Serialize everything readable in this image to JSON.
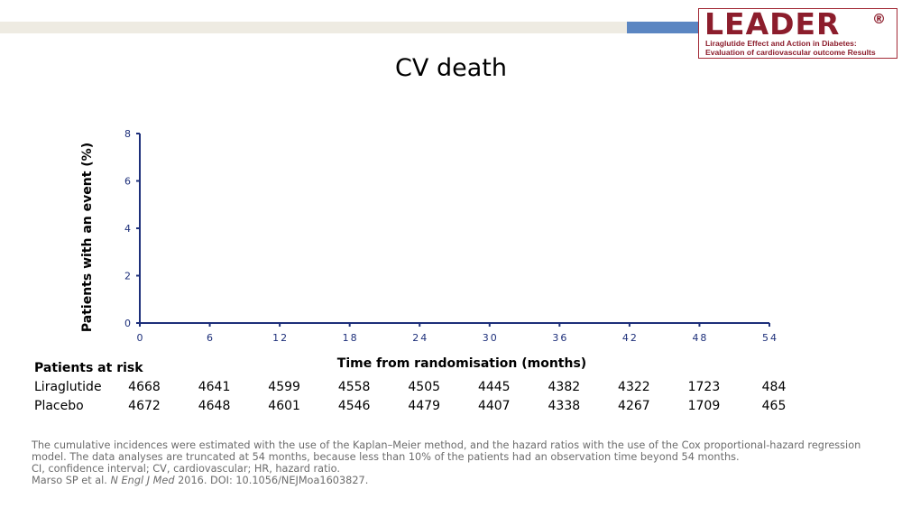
{
  "logo": {
    "word": "LEADER",
    "registered": "®",
    "subtitle_line1": "Liraglutide Effect and Action in Diabetes:",
    "subtitle_line2": "Evaluation of cardiovascular outcome Results"
  },
  "colors": {
    "brand": "#8c1d2c",
    "accent_blue": "#5b86c2",
    "axis": "#1d2f7a"
  },
  "chart_data": {
    "type": "line",
    "title": "CV death",
    "xlabel": "Time from randomisation (months)",
    "ylabel": "Patients with an event (%)",
    "xlim": [
      0,
      54
    ],
    "ylim": [
      0,
      8
    ],
    "x_ticks": [
      0,
      6,
      12,
      18,
      24,
      30,
      36,
      42,
      48,
      54
    ],
    "x_tick_labels": [
      "0",
      "6",
      "12",
      "18",
      "24",
      "30",
      "36",
      "42",
      "48",
      "54"
    ],
    "y_ticks": [
      0,
      2,
      4,
      6,
      8
    ],
    "y_tick_labels": [
      "0",
      "2",
      "4",
      "6",
      "8"
    ],
    "grid": false,
    "series": []
  },
  "risk_table": {
    "heading": "Patients at risk",
    "rows": [
      {
        "label": "Liraglutide",
        "values": [
          "4668",
          "4641",
          "4599",
          "4558",
          "4505",
          "4445",
          "4382",
          "4322",
          "1723",
          "484"
        ]
      },
      {
        "label": "Placebo",
        "values": [
          "4672",
          "4648",
          "4601",
          "4546",
          "4479",
          "4407",
          "4338",
          "4267",
          "1709",
          "465"
        ]
      }
    ]
  },
  "footnotes": {
    "line1": "The cumulative incidences were estimated with the use of the Kaplan–Meier method, and the hazard ratios with the use of the Cox proportional-hazard regression",
    "line2": "model. The data analyses are truncated at 54 months, because less than 10% of the patients had an observation time beyond 54 months.",
    "line3": "CI, confidence interval; CV, cardiovascular; HR, hazard ratio.",
    "ref_authors": "Marso SP et al. ",
    "ref_journal": "N Engl J Med",
    "ref_rest": " 2016. DOI: 10.1056/NEJMoa1603827."
  }
}
